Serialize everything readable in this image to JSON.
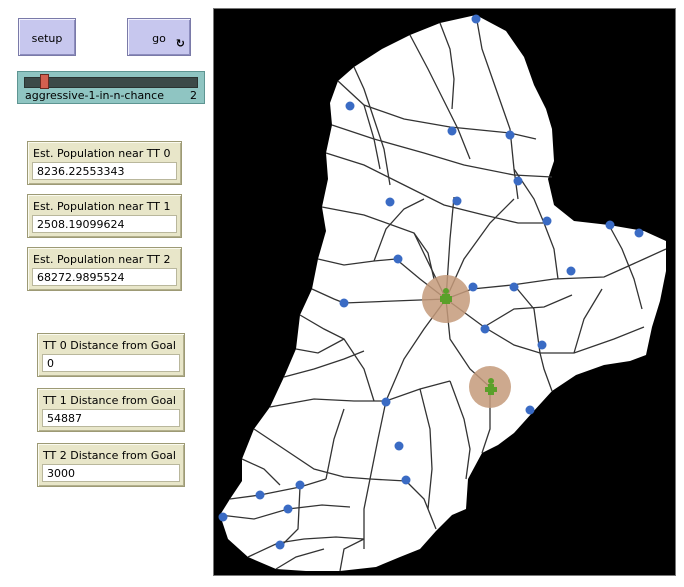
{
  "buttons": {
    "setup_label": "setup",
    "go_label": "go",
    "go_forever_icon": "forever-arrows-icon"
  },
  "slider": {
    "name": "aggressive-1-in-n-chance",
    "value": "2",
    "min": 1,
    "max": 20
  },
  "monitors": [
    {
      "label": "Est. Population near TT 0",
      "value": "8236.22553343"
    },
    {
      "label": "Est. Population near TT 1",
      "value": "2508.19099624"
    },
    {
      "label": "Est. Population near TT 2",
      "value": "68272.9895524"
    },
    {
      "label": "TT 0 Distance from Goal",
      "value": "0"
    },
    {
      "label": "TT 1 Distance from Goal",
      "value": "54887"
    },
    {
      "label": "TT 2 Distance from Goal",
      "value": "3000"
    }
  ],
  "view": {
    "colors": {
      "background": "#000000",
      "land": "#ffffff",
      "roads": "#333333",
      "nodes": "#3a6bc4",
      "zone": "#c49a7a",
      "agent": "#5aa02a"
    },
    "icons": [
      "node-dot-icon",
      "agent-person-icon"
    ]
  }
}
